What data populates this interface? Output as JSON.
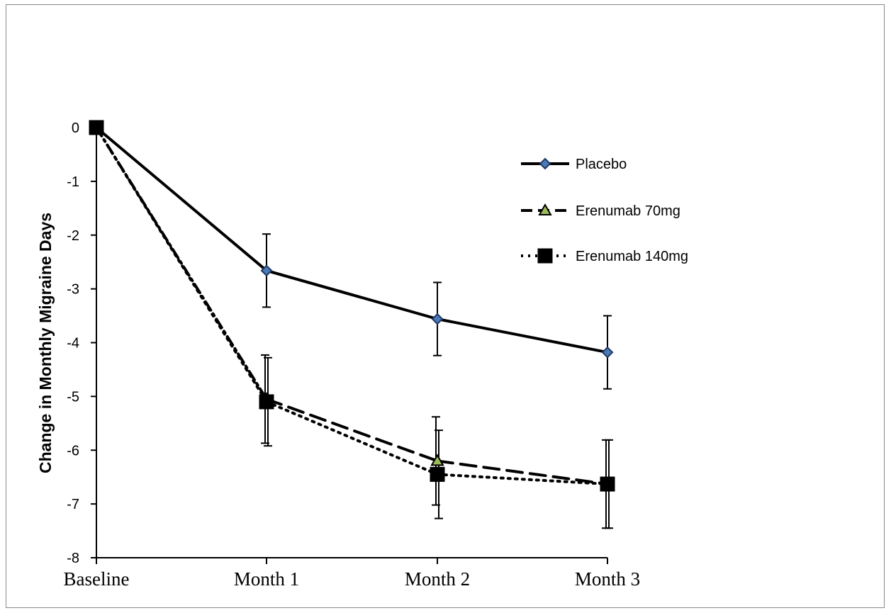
{
  "chart_data": {
    "type": "line",
    "title": "",
    "xlabel": "",
    "ylabel": "Change in Monthly Migraine Days",
    "categories": [
      "Baseline",
      "Month 1",
      "Month 2",
      "Month 3"
    ],
    "ylim": [
      -8,
      0
    ],
    "yticks": [
      0,
      -1,
      -2,
      -3,
      -4,
      -5,
      -6,
      -7,
      -8
    ],
    "grid": false,
    "legend_position": "top-right",
    "series": [
      {
        "name": "Placebo",
        "values": [
          0,
          -2.66,
          -3.56,
          -4.18
        ],
        "error": [
          0,
          0.68,
          0.68,
          0.68
        ],
        "line_style": "solid",
        "marker": "diamond",
        "marker_color": "#4a7ab5"
      },
      {
        "name": "Erenumab 70mg",
        "values": [
          0,
          -5.05,
          -6.2,
          -6.63
        ],
        "error": [
          0,
          0.82,
          0.82,
          0.82
        ],
        "line_style": "dashed",
        "marker": "triangle",
        "marker_color": "#9bbb59"
      },
      {
        "name": "Erenumab 140mg",
        "values": [
          0,
          -5.1,
          -6.45,
          -6.63
        ],
        "error": [
          0,
          0.82,
          0.82,
          0.82
        ],
        "line_style": "dotted",
        "marker": "square",
        "marker_color": "#000000"
      }
    ]
  }
}
